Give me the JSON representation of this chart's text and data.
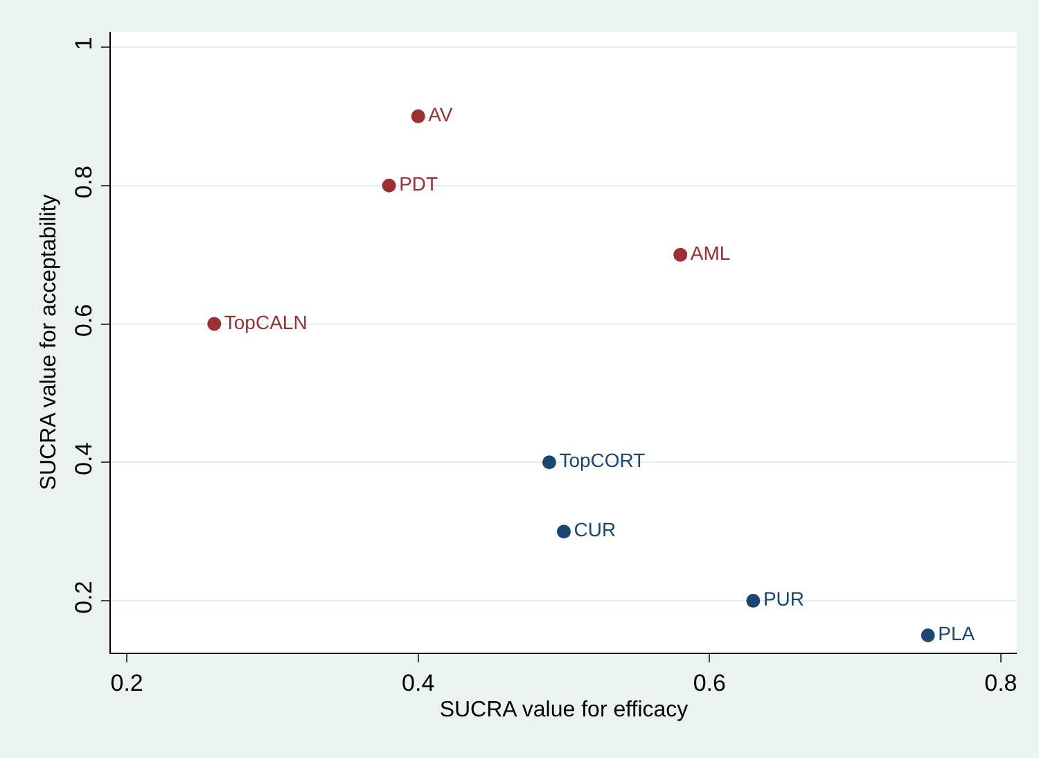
{
  "chart_data": {
    "type": "scatter",
    "xlabel": "SUCRA value for efficacy",
    "ylabel": "SUCRA value for acceptability",
    "series": [
      {
        "name": "AV",
        "color": "#9b2f33",
        "x": [
          0.4
        ],
        "values": [
          0.9
        ]
      },
      {
        "name": "PDT",
        "color": "#9b2f33",
        "x": [
          0.38
        ],
        "values": [
          0.8
        ]
      },
      {
        "name": "AML",
        "color": "#9b2f33",
        "x": [
          0.58
        ],
        "values": [
          0.7
        ]
      },
      {
        "name": "TopCALN",
        "color": "#9b2f33",
        "x": [
          0.26
        ],
        "values": [
          0.6
        ]
      },
      {
        "name": "TopCORT",
        "color": "#1a476f",
        "x": [
          0.49
        ],
        "values": [
          0.4
        ]
      },
      {
        "name": "CUR",
        "color": "#1a476f",
        "x": [
          0.5
        ],
        "values": [
          0.3
        ]
      },
      {
        "name": "PUR",
        "color": "#1a476f",
        "x": [
          0.63
        ],
        "values": [
          0.2
        ]
      },
      {
        "name": "PLA",
        "color": "#1a476f",
        "x": [
          0.75
        ],
        "values": [
          0.15
        ]
      }
    ],
    "xlim": [
      0.189,
      0.811
    ],
    "xticks": [
      0.2,
      0.4,
      0.6,
      0.8
    ],
    "ylim": [
      0.125,
      1.022
    ],
    "yticks": [
      0.2,
      0.4,
      0.6,
      0.8,
      1
    ],
    "grid": "y",
    "legend": false,
    "marker": "circle"
  }
}
